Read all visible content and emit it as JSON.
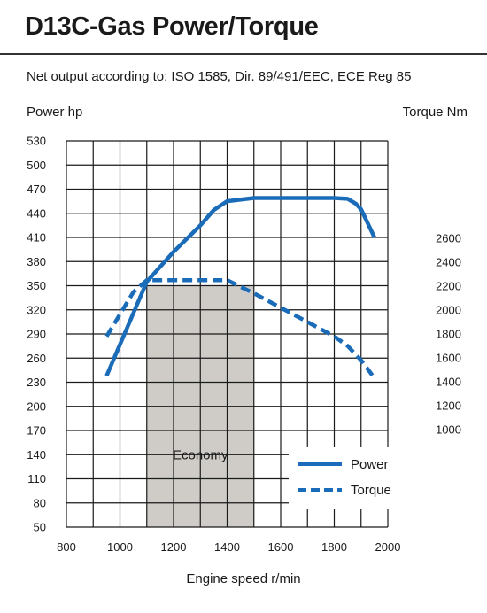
{
  "header": {
    "title": "D13C-Gas Power/Torque",
    "subtitle": "Net output according to: ISO 1585, Dir. 89/491/EEC, ECE Reg 85"
  },
  "chart_data": {
    "type": "line",
    "xlabel": "Engine speed r/min",
    "ylabel_left": "Power hp",
    "ylabel_right": "Torque Nm",
    "xlim": [
      800,
      2000
    ],
    "x_ticks": [
      "800",
      "1000",
      "1200",
      "1400",
      "1600",
      "1800",
      "2000"
    ],
    "ylim_left": [
      50,
      530
    ],
    "y_ticks_left": [
      "50",
      "80",
      "110",
      "140",
      "170",
      "200",
      "230",
      "260",
      "290",
      "320",
      "350",
      "380",
      "410",
      "440",
      "470",
      "500",
      "530"
    ],
    "y_ticks_right": [
      "1000",
      "1200",
      "1400",
      "1600",
      "1800",
      "2000",
      "2200",
      "2400",
      "2600"
    ],
    "grid": true,
    "legend_position": "bottom-right",
    "annotations": [
      {
        "label": "Economy",
        "x_range": [
          1100,
          1500
        ],
        "color": "#cfccc7"
      }
    ],
    "series": [
      {
        "name": "Power",
        "axis": "left",
        "style": "solid",
        "color": "#1a6cb8",
        "x": [
          950,
          1100,
          1200,
          1300,
          1350,
          1400,
          1500,
          1600,
          1700,
          1800,
          1850,
          1880,
          1900,
          1950
        ],
        "values": [
          238,
          355,
          392,
          425,
          444,
          455,
          459,
          459,
          459,
          459,
          458,
          452,
          445,
          410
        ]
      },
      {
        "name": "Torque",
        "axis": "right",
        "style": "dashed",
        "color": "#1a6cb8",
        "x": [
          950,
          1050,
          1100,
          1200,
          1300,
          1400,
          1500,
          1600,
          1700,
          1800,
          1850,
          1900,
          1950
        ],
        "values": [
          1780,
          2150,
          2250,
          2250,
          2250,
          2250,
          2140,
          2020,
          1900,
          1780,
          1700,
          1580,
          1430
        ]
      }
    ]
  }
}
